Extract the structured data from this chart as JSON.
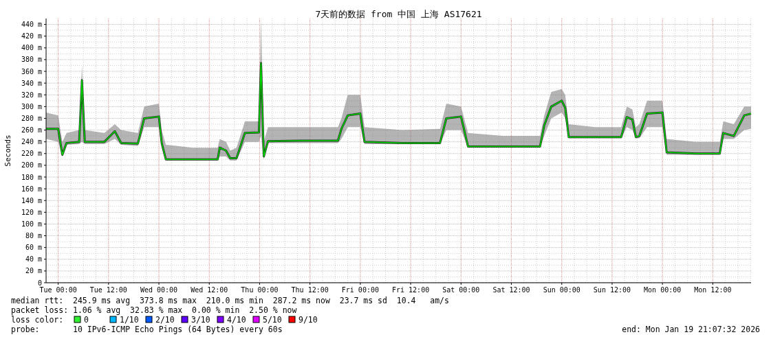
{
  "chart_data": {
    "type": "line",
    "title": "7天前的数据 from 中国 上海 AS17621",
    "ylabel": "Seconds",
    "x": [
      "2026-01-12T21:07",
      "2026-01-13T00:00",
      "2026-01-13T01:00",
      "2026-01-13T02:00",
      "2026-01-13T05:00",
      "2026-01-13T05:40",
      "2026-01-13T06:20",
      "2026-01-13T11:00",
      "2026-01-13T13:30",
      "2026-01-13T15:00",
      "2026-01-13T19:00",
      "2026-01-13T20:30",
      "2026-01-14T00:00",
      "2026-01-14T00:40",
      "2026-01-14T01:40",
      "2026-01-14T08:00",
      "2026-01-14T14:00",
      "2026-01-14T14:30",
      "2026-01-14T16:00",
      "2026-01-14T17:00",
      "2026-01-14T18:30",
      "2026-01-14T20:30",
      "2026-01-14T23:50",
      "2026-01-15T00:20",
      "2026-01-15T01:00",
      "2026-01-15T02:00",
      "2026-01-15T10:00",
      "2026-01-15T18:40",
      "2026-01-15T19:30",
      "2026-01-15T21:00",
      "2026-01-16T00:00",
      "2026-01-16T01:00",
      "2026-01-16T10:00",
      "2026-01-16T19:00",
      "2026-01-16T20:30",
      "2026-01-17T00:00",
      "2026-01-17T01:40",
      "2026-01-17T10:00",
      "2026-01-17T18:50",
      "2026-01-17T19:50",
      "2026-01-17T21:30",
      "2026-01-18T00:00",
      "2026-01-18T00:50",
      "2026-01-18T01:40",
      "2026-01-18T08:00",
      "2026-01-18T14:10",
      "2026-01-18T15:30",
      "2026-01-18T16:50",
      "2026-01-18T17:40",
      "2026-01-18T18:30",
      "2026-01-18T20:20",
      "2026-01-19T00:00",
      "2026-01-19T01:00",
      "2026-01-19T08:00",
      "2026-01-19T13:40",
      "2026-01-19T14:30",
      "2026-01-19T17:00",
      "2026-01-19T19:30",
      "2026-01-19T21:07"
    ],
    "series": [
      {
        "color": "#00e000",
        "values": [
          262,
          262,
          218,
          238,
          240,
          345,
          240,
          240,
          258,
          238,
          237,
          280,
          283,
          238,
          210,
          210,
          210,
          230,
          225,
          212,
          212,
          255,
          256,
          374,
          215,
          241,
          242,
          242,
          262,
          285,
          288,
          240,
          238,
          238,
          280,
          283,
          232,
          232,
          232,
          268,
          300,
          310,
          298,
          248,
          248,
          248,
          282,
          278,
          248,
          250,
          288,
          290,
          222,
          220,
          220,
          255,
          250,
          285,
          288
        ],
        "lower": [
          245,
          240,
          215,
          235,
          236,
          240,
          236,
          236,
          245,
          235,
          233,
          265,
          265,
          230,
          208,
          208,
          208,
          215,
          215,
          208,
          208,
          240,
          240,
          250,
          210,
          238,
          238,
          238,
          245,
          265,
          265,
          236,
          236,
          236,
          260,
          260,
          230,
          230,
          230,
          250,
          280,
          290,
          280,
          246,
          246,
          246,
          265,
          260,
          246,
          246,
          265,
          265,
          218,
          218,
          218,
          245,
          245,
          260,
          262
        ],
        "upper": [
          290,
          285,
          240,
          255,
          260,
          370,
          260,
          255,
          270,
          260,
          255,
          300,
          305,
          260,
          235,
          230,
          230,
          245,
          240,
          225,
          230,
          275,
          275,
          450,
          240,
          265,
          265,
          265,
          280,
          320,
          320,
          265,
          260,
          262,
          305,
          300,
          255,
          250,
          250,
          285,
          325,
          330,
          320,
          270,
          265,
          265,
          300,
          295,
          265,
          270,
          310,
          310,
          245,
          240,
          240,
          275,
          270,
          300,
          300
        ]
      }
    ],
    "xlim": [
      "2026-01-12T21:07",
      "2026-01-19T21:07"
    ],
    "xticks": [
      {
        "value": "2026-01-13T00:00",
        "label": "Tue 00:00"
      },
      {
        "value": "2026-01-13T12:00",
        "label": "Tue 12:00"
      },
      {
        "value": "2026-01-14T00:00",
        "label": "Wed 00:00"
      },
      {
        "value": "2026-01-14T12:00",
        "label": "Wed 12:00"
      },
      {
        "value": "2026-01-15T00:00",
        "label": "Thu 00:00"
      },
      {
        "value": "2026-01-15T12:00",
        "label": "Thu 12:00"
      },
      {
        "value": "2026-01-16T00:00",
        "label": "Fri 00:00"
      },
      {
        "value": "2026-01-16T12:00",
        "label": "Fri 12:00"
      },
      {
        "value": "2026-01-17T00:00",
        "label": "Sat 00:00"
      },
      {
        "value": "2026-01-17T12:00",
        "label": "Sat 12:00"
      },
      {
        "value": "2026-01-18T00:00",
        "label": "Sun 00:00"
      },
      {
        "value": "2026-01-18T12:00",
        "label": "Sun 12:00"
      },
      {
        "value": "2026-01-19T00:00",
        "label": "Mon 00:00"
      },
      {
        "value": "2026-01-19T12:00",
        "label": "Mon 12:00"
      }
    ],
    "ylim": [
      0,
      450
    ],
    "yticks": [
      0,
      {
        "value": 20,
        "label": "20 m"
      },
      {
        "value": 40,
        "label": "40 m"
      },
      {
        "value": 60,
        "label": "60 m"
      },
      {
        "value": 80,
        "label": "80 m"
      },
      {
        "value": 100,
        "label": "100 m"
      },
      {
        "value": 120,
        "label": "120 m"
      },
      {
        "value": 140,
        "label": "140 m"
      },
      {
        "value": 160,
        "label": "160 m"
      },
      {
        "value": 180,
        "label": "180 m"
      },
      {
        "value": 200,
        "label": "200 m"
      },
      {
        "value": 220,
        "label": "220 m"
      },
      {
        "value": 240,
        "label": "240 m"
      },
      {
        "value": 260,
        "label": "260 m"
      },
      {
        "value": 280,
        "label": "280 m"
      },
      {
        "value": 300,
        "label": "300 m"
      },
      {
        "value": 320,
        "label": "320 m"
      },
      {
        "value": 340,
        "label": "340 m"
      },
      {
        "value": 360,
        "label": "360 m"
      },
      {
        "value": 380,
        "label": "380 m"
      },
      {
        "value": 400,
        "label": "400 m"
      },
      {
        "value": 420,
        "label": "420 m"
      },
      {
        "value": 440,
        "label": "440 m"
      }
    ],
    "grid": true,
    "annotations": [
      "median rtt:  245.9 ms avg  373.8 ms max  210.0 ms min  287.2 ms now  23.7 ms sd  10.4   am/s",
      "packet loss: 1.06 % avg  32.83 % max  0.00 % min  2.50 % now",
      "loss color:",
      "0",
      "1/10",
      "2/10",
      "3/10",
      "4/10",
      "5/10",
      "9/10",
      "probe:       10 IPv6-ICMP Echo Pings (64 Bytes) every 60s",
      "end: Mon Jan 19 21:07:32 2026"
    ]
  }
}
